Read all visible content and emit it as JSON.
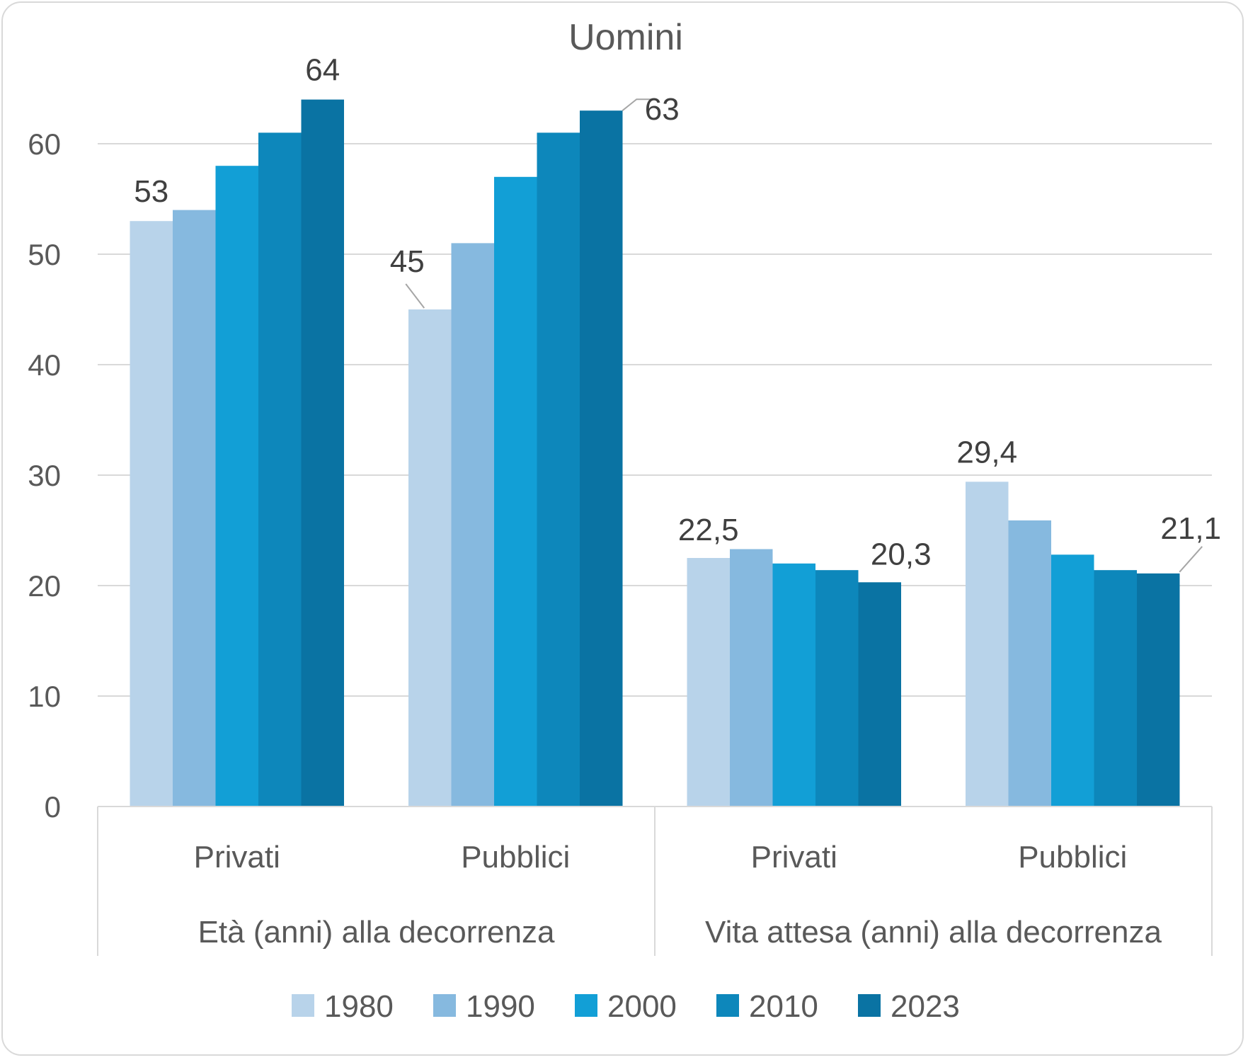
{
  "chart_data": {
    "type": "bar",
    "title": "Uomini",
    "ylim": [
      0,
      60
    ],
    "yticks": [
      "0",
      "10",
      "20",
      "30",
      "40",
      "50",
      "60"
    ],
    "grid": true,
    "legend_position": "bottom",
    "groups": [
      {
        "label": "Età (anni) alla decorrenza",
        "categories": [
          "Privati",
          "Pubblici"
        ]
      },
      {
        "label": "Vita attesa (anni) alla decorrenza",
        "categories": [
          "Privati",
          "Pubblici"
        ]
      }
    ],
    "categories": [
      "Privati",
      "Pubblici",
      "Privati",
      "Pubblici"
    ],
    "series": [
      {
        "name": "1980",
        "color": "#b8d3ea",
        "values": [
          53,
          45,
          22.5,
          29.4
        ]
      },
      {
        "name": "1990",
        "color": "#86b9df",
        "values": [
          54,
          51,
          23.3,
          25.9
        ]
      },
      {
        "name": "2000",
        "color": "#129fd6",
        "values": [
          58,
          57,
          22.0,
          22.8
        ]
      },
      {
        "name": "2010",
        "color": "#0d87bb",
        "values": [
          61,
          61,
          21.4,
          21.4
        ]
      },
      {
        "name": "2023",
        "color": "#0a73a3",
        "values": [
          64,
          63,
          20.3,
          21.1
        ]
      }
    ],
    "data_labels": [
      {
        "series": 0,
        "category": 0,
        "text": "53"
      },
      {
        "series": 4,
        "category": 0,
        "text": "64"
      },
      {
        "series": 0,
        "category": 1,
        "text": "45"
      },
      {
        "series": 4,
        "category": 1,
        "text": "63"
      },
      {
        "series": 0,
        "category": 2,
        "text": "22,5"
      },
      {
        "series": 4,
        "category": 2,
        "text": "20,3"
      },
      {
        "series": 0,
        "category": 3,
        "text": "29,4"
      },
      {
        "series": 4,
        "category": 3,
        "text": "21,1"
      }
    ]
  }
}
